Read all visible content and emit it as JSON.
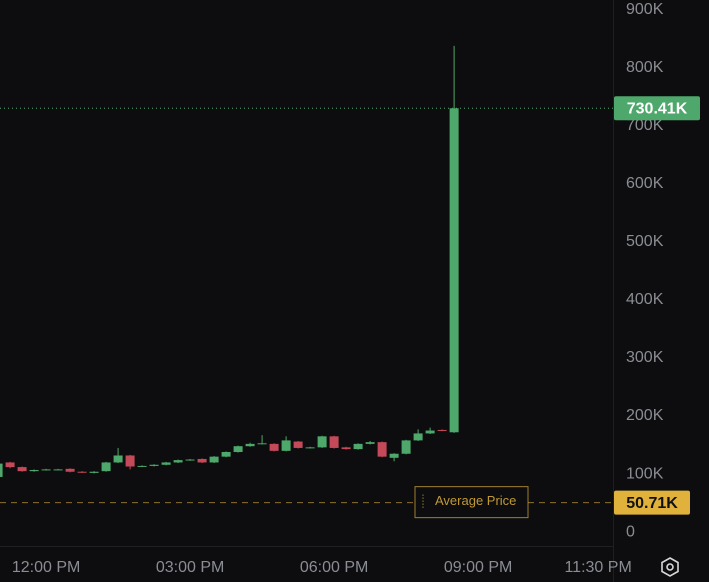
{
  "chart_data": {
    "type": "candlestick",
    "x": [
      11,
      11.25,
      11.5,
      11.75,
      12,
      12.25,
      12.5,
      12.75,
      13,
      13.25,
      13.5,
      13.75,
      14,
      14.25,
      14.5,
      14.75,
      15,
      15.25,
      15.5,
      15.75,
      16,
      16.25,
      16.5,
      16.75,
      17,
      17.25,
      17.5,
      17.75,
      18,
      18.25,
      18.5,
      18.75,
      19,
      19.25,
      19.5,
      19.75,
      20,
      20.25,
      20.5
    ],
    "open": [
      95000,
      120000,
      112000,
      105000,
      107000,
      108000,
      109000,
      104000,
      102000,
      105000,
      120000,
      132000,
      113000,
      114000,
      116000,
      120000,
      124000,
      126000,
      120000,
      130000,
      138000,
      148000,
      152000,
      152000,
      140000,
      156000,
      145000,
      146000,
      165000,
      146000,
      143000,
      152000,
      155000,
      128000,
      135000,
      158000,
      170000,
      176000,
      172000
    ],
    "high": [
      120000,
      121000,
      113000,
      108000,
      109000,
      109000,
      110000,
      105000,
      105000,
      121000,
      145000,
      133000,
      115000,
      117000,
      121000,
      125000,
      126000,
      127000,
      131000,
      139000,
      149000,
      154000,
      167000,
      153000,
      165000,
      157000,
      147000,
      166000,
      166000,
      147000,
      153000,
      157000,
      156000,
      136000,
      159000,
      177000,
      180000,
      177000,
      838000
    ],
    "low": [
      93000,
      110000,
      104000,
      104000,
      106000,
      107000,
      103000,
      102000,
      101000,
      104000,
      119000,
      108000,
      112000,
      113000,
      115000,
      119000,
      123000,
      119000,
      119000,
      129000,
      137000,
      147000,
      151000,
      139000,
      139000,
      144000,
      144000,
      145000,
      144000,
      142000,
      142000,
      151000,
      129000,
      122000,
      134000,
      157000,
      169000,
      174000,
      171000
    ],
    "close": [
      118000,
      112000,
      105000,
      107000,
      108000,
      108000,
      104000,
      103000,
      104000,
      120000,
      132000,
      113000,
      114000,
      116000,
      120000,
      124000,
      125000,
      120000,
      130000,
      138000,
      148000,
      152000,
      153000,
      140000,
      158000,
      145000,
      146000,
      165000,
      145000,
      143000,
      152000,
      155000,
      130000,
      135000,
      158000,
      170000,
      175000,
      175000,
      730410
    ],
    "up_color": "#4ea86b",
    "down_color": "#c44a5a",
    "xlim": [
      11.04,
      23.81
    ],
    "ylim": [
      -24000,
      917000
    ],
    "xticks": [
      {
        "value": 12,
        "label": "12:00 PM"
      },
      {
        "value": 15,
        "label": "03:00 PM"
      },
      {
        "value": 18,
        "label": "06:00 PM"
      },
      {
        "value": 21,
        "label": "09:00 PM"
      },
      {
        "value": 23.5,
        "label": "11:30 PM"
      }
    ],
    "yticks": [
      0,
      {
        "value": 100000,
        "label": "100K"
      },
      {
        "value": 200000,
        "label": "200K"
      },
      {
        "value": 300000,
        "label": "300K"
      },
      {
        "value": 400000,
        "label": "400K"
      },
      {
        "value": 500000,
        "label": "500K"
      },
      {
        "value": 600000,
        "label": "600K"
      },
      {
        "value": 700000,
        "label": "700K"
      },
      {
        "value": 800000,
        "label": "800K"
      },
      {
        "value": 900000,
        "label": "900K"
      }
    ],
    "last_price": {
      "value": 730410,
      "label": "730.41K"
    },
    "average_price": {
      "name": "Average Price",
      "value": 50710,
      "label": "50.71K",
      "color": "#e0b23c"
    }
  }
}
